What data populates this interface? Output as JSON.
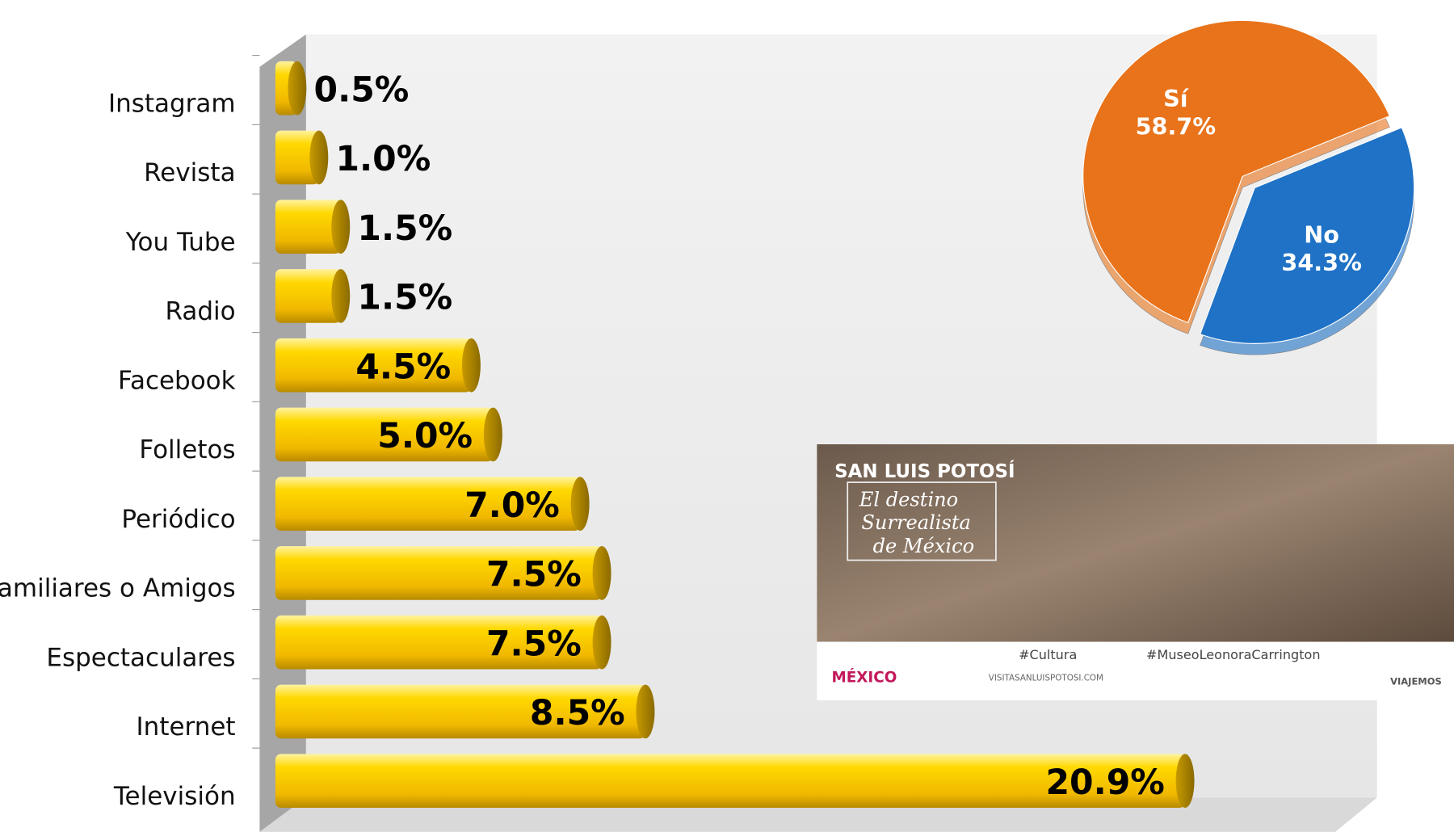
{
  "chart_data": [
    {
      "type": "bar",
      "categories": [
        "Instagram",
        "Revista",
        "You Tube",
        "Radio",
        "Facebook",
        "Folletos",
        "Periódico",
        "Familiares o Amigos",
        "Espectaculares",
        "Internet",
        "Televisión"
      ],
      "values": [
        0.5,
        1.0,
        1.5,
        1.5,
        4.5,
        5.0,
        7.0,
        7.5,
        7.5,
        8.5,
        20.9
      ],
      "value_labels": [
        "0.5%",
        "1.0%",
        "1.5%",
        "1.5%",
        "4.5%",
        "5.0%",
        "7.0%",
        "7.5%",
        "7.5%",
        "8.5%",
        "20.9%"
      ],
      "color": "#ffd000"
    },
    {
      "type": "pie",
      "categories": [
        "Sí",
        "No"
      ],
      "values": [
        58.7,
        34.3
      ],
      "value_labels": [
        "58.7%",
        "34.3%"
      ],
      "colors": [
        "#e8731a",
        "#1f72c6"
      ]
    }
  ],
  "banner": {
    "brand": "SAN LUIS POTOSÍ",
    "quote": [
      "El destino",
      "Surrealista",
      "de México"
    ],
    "tags": [
      "#Cultura",
      "#MuseoLeonoraCarrington"
    ],
    "logos": [
      "MÉXICO",
      "VISITASANLUISPOTOSI.COM",
      "VIAJEMOS"
    ]
  }
}
